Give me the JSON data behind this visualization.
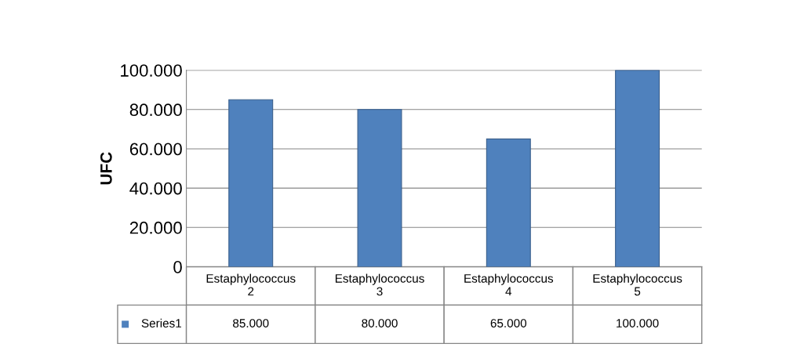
{
  "chart_data": {
    "type": "bar",
    "ylabel": "UFC",
    "categories": [
      "Estaphylococcus 2",
      "Estaphylococcus 3",
      "Estaphylococcus 4",
      "Estaphylococcus 5"
    ],
    "series": [
      {
        "name": "Series1",
        "color": "#4f81bd",
        "values": [
          85000,
          80000,
          65000,
          100000
        ],
        "value_labels": [
          "85.000",
          "80.000",
          "65.000",
          "100.000"
        ]
      }
    ],
    "ylim": [
      0,
      100000
    ],
    "yticks": [
      {
        "value": 0,
        "label": "0"
      },
      {
        "value": 20000,
        "label": "20.000"
      },
      {
        "value": 40000,
        "label": "40.000"
      },
      {
        "value": 60000,
        "label": "60.000"
      },
      {
        "value": 80000,
        "label": "80.000"
      },
      {
        "value": 100000,
        "label": "100.000"
      }
    ],
    "grid": "y"
  }
}
